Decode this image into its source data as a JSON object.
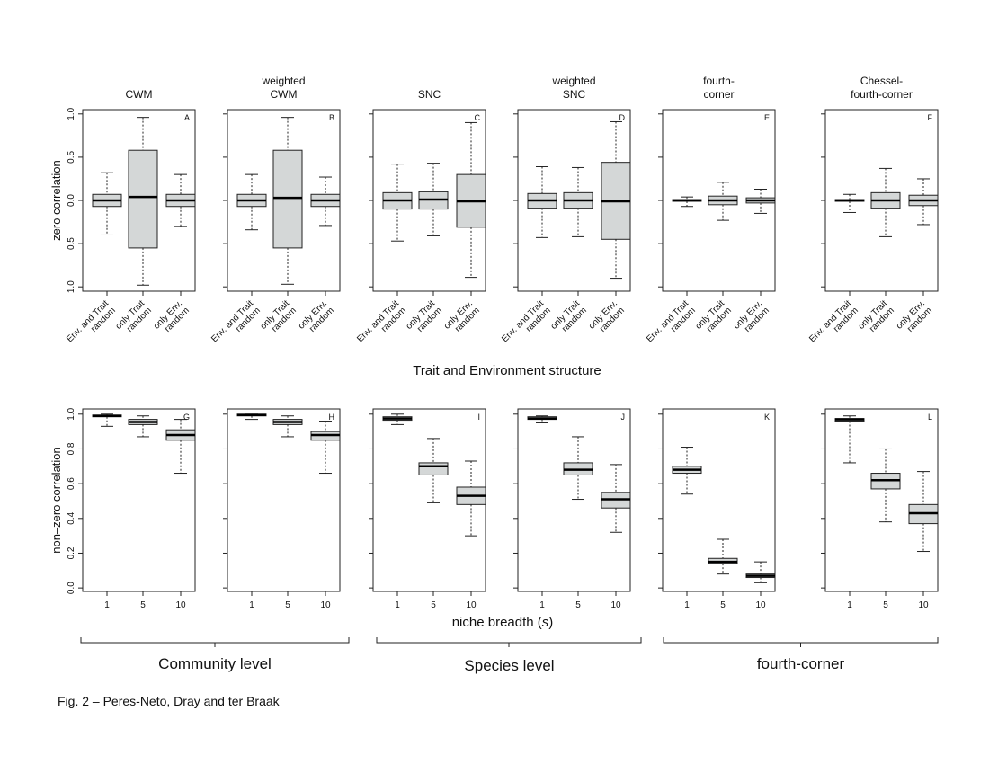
{
  "figure": {
    "caption": "Fig. 2 – Peres-Neto, Dray and ter Braak",
    "top_xlabel": "Trait and Environment structure",
    "bottom_xlabel_text": "niche breadth (",
    "bottom_xlabel_var": "s",
    "bottom_xlabel_close": ")",
    "top_ylabel": "zero correlation",
    "bottom_ylabel": "non–zero correlation",
    "groups": [
      {
        "label": "Community level"
      },
      {
        "label": "Species level"
      },
      {
        "label": "fourth-corner"
      }
    ],
    "box_fill": "#d4d7d7",
    "top_categories": [
      [
        "Env. and Trait",
        "random"
      ],
      [
        "only Trait",
        "random"
      ],
      [
        "only Env.",
        "random"
      ]
    ],
    "top_yticks": [
      "1.0",
      "0.5",
      "0.0",
      "0.5",
      "1.0"
    ],
    "bottom_yticks": [
      "1.0",
      "0.8",
      "0.6",
      "0.4",
      "0.2",
      "0.0"
    ],
    "bottom_xticks": [
      "1",
      "5",
      "10"
    ]
  },
  "chart_data": [
    {
      "type": "box",
      "panel": "A",
      "title": [
        "CWM"
      ],
      "ylabel": "zero correlation",
      "ylim": [
        -1.05,
        1.05
      ],
      "categories": [
        "Env. and Trait random",
        "only Trait random",
        "only Env. random"
      ],
      "boxes": [
        {
          "min": -0.4,
          "q1": -0.07,
          "median": 0.0,
          "q3": 0.07,
          "max": 0.32
        },
        {
          "min": -0.98,
          "q1": -0.55,
          "median": 0.04,
          "q3": 0.58,
          "max": 0.96
        },
        {
          "min": -0.3,
          "q1": -0.07,
          "median": 0.0,
          "q3": 0.07,
          "max": 0.3
        }
      ]
    },
    {
      "type": "box",
      "panel": "B",
      "title": [
        "weighted",
        "CWM"
      ],
      "ylim": [
        -1.05,
        1.05
      ],
      "categories": [
        "Env. and Trait random",
        "only Trait random",
        "only Env. random"
      ],
      "boxes": [
        {
          "min": -0.34,
          "q1": -0.07,
          "median": 0.0,
          "q3": 0.07,
          "max": 0.3
        },
        {
          "min": -0.97,
          "q1": -0.55,
          "median": 0.03,
          "q3": 0.58,
          "max": 0.96
        },
        {
          "min": -0.29,
          "q1": -0.07,
          "median": 0.0,
          "q3": 0.07,
          "max": 0.27
        }
      ]
    },
    {
      "type": "box",
      "panel": "C",
      "title": [
        "SNC"
      ],
      "ylim": [
        -1.05,
        1.05
      ],
      "categories": [
        "Env. and Trait random",
        "only Trait random",
        "only Env. random"
      ],
      "boxes": [
        {
          "min": -0.47,
          "q1": -0.1,
          "median": 0.0,
          "q3": 0.09,
          "max": 0.42
        },
        {
          "min": -0.41,
          "q1": -0.1,
          "median": 0.01,
          "q3": 0.1,
          "max": 0.43
        },
        {
          "min": -0.89,
          "q1": -0.31,
          "median": -0.01,
          "q3": 0.3,
          "max": 0.9
        }
      ]
    },
    {
      "type": "box",
      "panel": "D",
      "title": [
        "weighted",
        "SNC"
      ],
      "ylim": [
        -1.05,
        1.05
      ],
      "categories": [
        "Env. and Trait random",
        "only Trait random",
        "only Env. random"
      ],
      "boxes": [
        {
          "min": -0.43,
          "q1": -0.09,
          "median": 0.0,
          "q3": 0.08,
          "max": 0.39
        },
        {
          "min": -0.42,
          "q1": -0.09,
          "median": 0.0,
          "q3": 0.09,
          "max": 0.38
        },
        {
          "min": -0.9,
          "q1": -0.45,
          "median": -0.01,
          "q3": 0.44,
          "max": 0.91
        }
      ]
    },
    {
      "type": "box",
      "panel": "E",
      "title": [
        "fourth-",
        "corner"
      ],
      "ylim": [
        -1.05,
        1.05
      ],
      "categories": [
        "Env. and Trait random",
        "only Trait random",
        "only Env. random"
      ],
      "boxes": [
        {
          "min": -0.07,
          "q1": -0.01,
          "median": 0.0,
          "q3": 0.01,
          "max": 0.04
        },
        {
          "min": -0.23,
          "q1": -0.05,
          "median": 0.0,
          "q3": 0.05,
          "max": 0.21
        },
        {
          "min": -0.15,
          "q1": -0.03,
          "median": 0.0,
          "q3": 0.03,
          "max": 0.13
        }
      ]
    },
    {
      "type": "box",
      "panel": "F",
      "title": [
        "Chessel-",
        "fourth-corner"
      ],
      "ylim": [
        -1.05,
        1.05
      ],
      "categories": [
        "Env. and Trait random",
        "only Trait random",
        "only Env. random"
      ],
      "boxes": [
        {
          "min": -0.14,
          "q1": -0.01,
          "median": 0.0,
          "q3": 0.01,
          "max": 0.07
        },
        {
          "min": -0.42,
          "q1": -0.09,
          "median": 0.0,
          "q3": 0.09,
          "max": 0.37
        },
        {
          "min": -0.28,
          "q1": -0.06,
          "median": 0.0,
          "q3": 0.06,
          "max": 0.25
        }
      ]
    },
    {
      "type": "box",
      "panel": "G",
      "ylabel": "non–zero correlation",
      "xlabel": "niche breadth (s)",
      "ylim": [
        -0.02,
        1.03
      ],
      "categories": [
        "1",
        "5",
        "10"
      ],
      "boxes": [
        {
          "min": 0.93,
          "q1": 0.985,
          "median": 0.99,
          "q3": 0.995,
          "max": 1.0
        },
        {
          "min": 0.87,
          "q1": 0.94,
          "median": 0.955,
          "q3": 0.97,
          "max": 0.99
        },
        {
          "min": 0.66,
          "q1": 0.85,
          "median": 0.88,
          "q3": 0.91,
          "max": 0.97
        }
      ]
    },
    {
      "type": "box",
      "panel": "H",
      "ylim": [
        -0.02,
        1.03
      ],
      "categories": [
        "1",
        "5",
        "10"
      ],
      "boxes": [
        {
          "min": 0.97,
          "q1": 0.99,
          "median": 0.995,
          "q3": 1.0,
          "max": 1.0
        },
        {
          "min": 0.87,
          "q1": 0.94,
          "median": 0.955,
          "q3": 0.97,
          "max": 0.99
        },
        {
          "min": 0.66,
          "q1": 0.85,
          "median": 0.88,
          "q3": 0.9,
          "max": 0.96
        }
      ]
    },
    {
      "type": "box",
      "panel": "I",
      "ylim": [
        -0.02,
        1.03
      ],
      "categories": [
        "1",
        "5",
        "10"
      ],
      "boxes": [
        {
          "min": 0.94,
          "q1": 0.965,
          "median": 0.975,
          "q3": 0.985,
          "max": 1.0
        },
        {
          "min": 0.49,
          "q1": 0.65,
          "median": 0.7,
          "q3": 0.72,
          "max": 0.86
        },
        {
          "min": 0.3,
          "q1": 0.48,
          "median": 0.53,
          "q3": 0.58,
          "max": 0.73
        }
      ]
    },
    {
      "type": "box",
      "panel": "J",
      "ylim": [
        -0.02,
        1.03
      ],
      "categories": [
        "1",
        "5",
        "10"
      ],
      "boxes": [
        {
          "min": 0.95,
          "q1": 0.97,
          "median": 0.975,
          "q3": 0.985,
          "max": 0.99
        },
        {
          "min": 0.51,
          "q1": 0.65,
          "median": 0.68,
          "q3": 0.72,
          "max": 0.87
        },
        {
          "min": 0.32,
          "q1": 0.46,
          "median": 0.51,
          "q3": 0.55,
          "max": 0.71
        }
      ]
    },
    {
      "type": "box",
      "panel": "K",
      "ylim": [
        -0.02,
        1.03
      ],
      "categories": [
        "1",
        "5",
        "10"
      ],
      "boxes": [
        {
          "min": 0.54,
          "q1": 0.66,
          "median": 0.68,
          "q3": 0.7,
          "max": 0.81
        },
        {
          "min": 0.08,
          "q1": 0.14,
          "median": 0.15,
          "q3": 0.17,
          "max": 0.28
        },
        {
          "min": 0.03,
          "q1": 0.06,
          "median": 0.07,
          "q3": 0.08,
          "max": 0.15
        }
      ]
    },
    {
      "type": "box",
      "panel": "L",
      "ylim": [
        -0.02,
        1.03
      ],
      "categories": [
        "1",
        "5",
        "10"
      ],
      "boxes": [
        {
          "min": 0.72,
          "q1": 0.96,
          "median": 0.97,
          "q3": 0.975,
          "max": 0.99
        },
        {
          "min": 0.38,
          "q1": 0.57,
          "median": 0.62,
          "q3": 0.66,
          "max": 0.8
        },
        {
          "min": 0.21,
          "q1": 0.37,
          "median": 0.43,
          "q3": 0.48,
          "max": 0.67
        }
      ]
    }
  ]
}
